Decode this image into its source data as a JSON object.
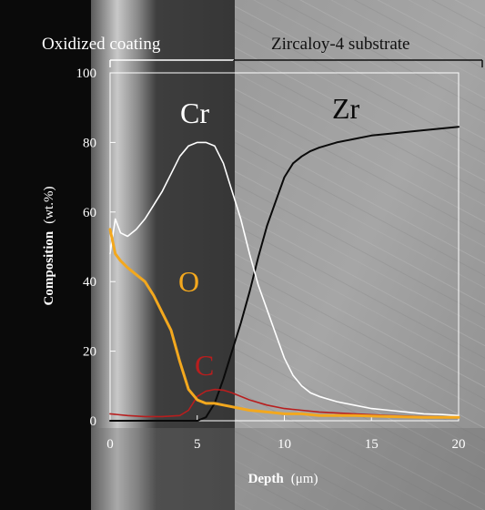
{
  "chart_data": {
    "type": "line",
    "xlabel": "Depth",
    "xlabel_unit": "(μm)",
    "ylabel": "Composition",
    "ylabel_unit": "(wt.%)",
    "xlim": [
      0,
      20
    ],
    "ylim": [
      0,
      100
    ],
    "x_ticks": [
      0,
      5,
      10,
      15,
      20
    ],
    "y_ticks": [
      0,
      20,
      40,
      60,
      80,
      100
    ],
    "x_tick_labels": [
      "0",
      "5",
      "10",
      "15",
      "20"
    ],
    "y_tick_labels": [
      "0",
      "20",
      "40",
      "60",
      "80",
      "100"
    ],
    "grid": false,
    "legend": "none",
    "regions": [
      {
        "label": "Oxidized coating",
        "x_start": 0,
        "x_end": 7.1
      },
      {
        "label": "Zircaloy-4 substrate",
        "x_start": 7.1,
        "x_end": 21.5
      }
    ],
    "series": [
      {
        "name": "Cr",
        "color": "#ffffff",
        "x": [
          0,
          0.3,
          0.6,
          1.0,
          1.5,
          2.0,
          2.5,
          3.0,
          3.5,
          4.0,
          4.5,
          5.0,
          5.5,
          6.0,
          6.5,
          7.0,
          7.5,
          8.0,
          8.5,
          9.0,
          9.5,
          10.0,
          10.5,
          11.0,
          11.5,
          12.0,
          13.0,
          14.0,
          15.0,
          16.0,
          17.0,
          18.0,
          19.0,
          20.0
        ],
        "y": [
          48,
          58,
          54,
          53,
          55,
          58,
          62,
          66,
          71,
          76,
          79,
          80,
          80,
          79,
          74,
          66,
          58,
          48,
          39,
          32,
          25,
          18,
          13,
          10,
          8,
          7,
          5.5,
          4.5,
          3.5,
          3,
          2.5,
          2,
          1.8,
          1.5
        ]
      },
      {
        "name": "O",
        "color": "#f3a81e",
        "x": [
          0,
          0.3,
          0.6,
          1.0,
          1.5,
          2.0,
          2.5,
          3.0,
          3.5,
          4.0,
          4.5,
          5.0,
          5.5,
          6.0,
          6.5,
          7.0,
          7.5,
          8.0,
          9.0,
          10.0,
          11.0,
          12.0,
          14.0,
          16.0,
          18.0,
          20.0
        ],
        "y": [
          55,
          48,
          46,
          44,
          42,
          40,
          36,
          31,
          26,
          17,
          9,
          6,
          5,
          5,
          4.5,
          4,
          3.5,
          3,
          2.5,
          2,
          2,
          1.5,
          1.5,
          1.2,
          1,
          1
        ]
      },
      {
        "name": "C",
        "color": "#b81e1e",
        "x": [
          0,
          1.0,
          2.0,
          3.0,
          4.0,
          4.5,
          5.0,
          5.5,
          6.0,
          6.5,
          7.0,
          7.5,
          8.0,
          9.0,
          10.0,
          11.0,
          12.0,
          14.0,
          16.0,
          18.0,
          20.0
        ],
        "y": [
          2,
          1.5,
          1.2,
          1.2,
          1.5,
          3,
          7,
          8.5,
          9,
          8.8,
          8,
          7,
          6,
          4.5,
          3.5,
          3,
          2.5,
          2,
          1.5,
          1.2,
          1
        ]
      },
      {
        "name": "Zr",
        "color": "#0a0a0a",
        "x": [
          0,
          2.0,
          4.0,
          5.0,
          5.5,
          6.0,
          6.5,
          7.0,
          7.5,
          8.0,
          8.5,
          9.0,
          9.5,
          10.0,
          10.5,
          11.0,
          11.5,
          12.0,
          13.0,
          14.0,
          15.0,
          16.0,
          17.0,
          18.0,
          19.0,
          20.0
        ],
        "y": [
          0,
          0,
          0,
          0,
          1,
          5,
          12,
          20,
          28,
          37,
          47,
          56,
          63,
          70,
          74,
          76,
          77.5,
          78.5,
          80,
          81,
          82,
          82.5,
          83,
          83.5,
          84,
          84.5
        ]
      }
    ]
  }
}
